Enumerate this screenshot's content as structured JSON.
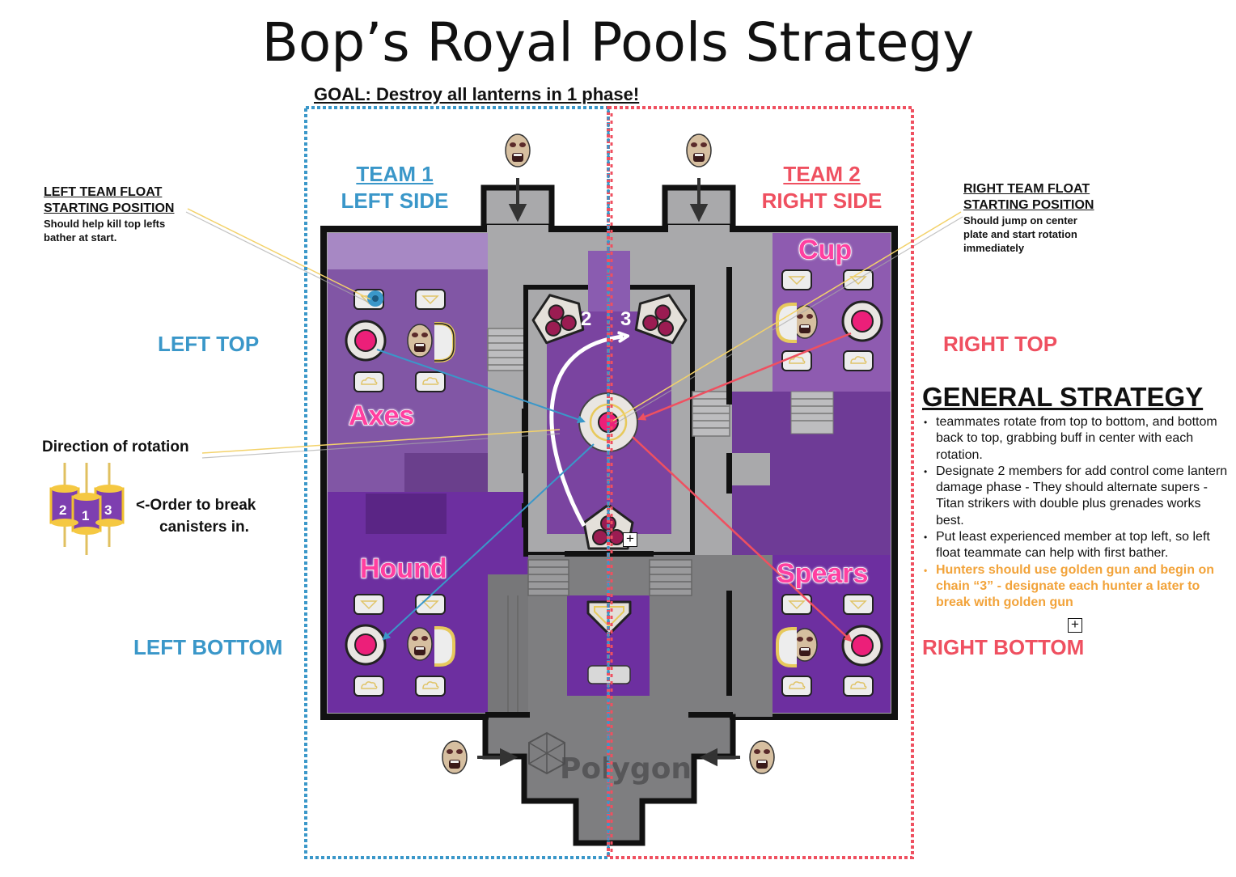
{
  "title": "Bop’s Royal Pools Strategy",
  "goal": "GOAL: Destroy all lanterns in 1 phase!",
  "team1": {
    "name": "TEAM 1",
    "side": "LEFT SIDE"
  },
  "team2": {
    "name": "TEAM 2",
    "side": "RIGHT SIDE"
  },
  "zones": {
    "left_top": "LEFT TOP",
    "left_bottom": "LEFT BOTTOM",
    "right_top": "RIGHT TOP",
    "right_bottom": "RIGHT BOTTOM"
  },
  "left_float": {
    "heading_line1": "LEFT TEAM FLOAT",
    "heading_line2": "STARTING POSITION",
    "body_line1": "Should help kill top lefts",
    "body_line2": "bather at start."
  },
  "right_float": {
    "heading_line1": "RIGHT TEAM FLOAT",
    "heading_line2": "STARTING POSITION",
    "body_line1": "Should jump on center",
    "body_line2": "plate and start rotation",
    "body_line3": "immediately"
  },
  "rooms": {
    "axes": "Axes",
    "cup": "Cup",
    "hound": "Hound",
    "spears": "Spears"
  },
  "rotation_label": "Direction of rotation",
  "canister_order": {
    "line1": "<-Order to break",
    "line2": "canisters in.",
    "numbers": [
      "2",
      "1",
      "3"
    ]
  },
  "chain_numbers": [
    "2",
    "3"
  ],
  "watermark": "Polygon",
  "general_strategy": {
    "heading": "GENERAL STRATEGY",
    "items": [
      "teammates rotate from top to bottom, and bottom back to top, grabbing buff in center with each rotation.",
      "Designate 2 members for add control come lantern damage phase - They should alternate supers - Titan strikers with double plus grenades works best.",
      "Put least experienced member at top left, so left float teammate can help with first bather.",
      "Hunters should use golden gun and begin on chain “3” - designate each hunter a later to break with golden gun"
    ]
  },
  "colors": {
    "team1": "#3a97c9",
    "team2": "#ef5060",
    "room_label": "#ff3fa0",
    "purple_room": "#6e3b96",
    "purple_light": "#9a76b8",
    "corridor_gray": "#a9a9ab",
    "highlight": "#f2a33a"
  }
}
